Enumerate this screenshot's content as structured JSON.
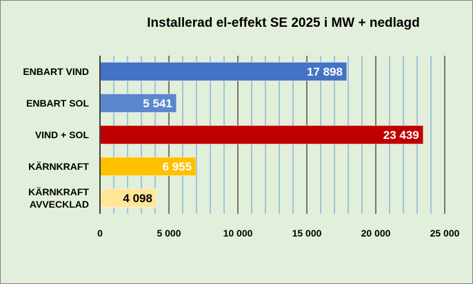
{
  "chart_data": {
    "type": "bar",
    "orientation": "horizontal",
    "title": "Installerad el-effekt SE 2025 i MW + nedlagd",
    "categories": [
      [
        "ENBART VIND"
      ],
      [
        "ENBART SOL"
      ],
      [
        "VIND + SOL"
      ],
      [
        "KÄRNKRAFT"
      ],
      [
        "KÄRNKRAFT",
        "AVVECKLAD"
      ]
    ],
    "values": [
      17898,
      5541,
      23439,
      6955,
      4098
    ],
    "value_labels": [
      "17 898",
      "5 541",
      "23 439",
      "6 955",
      "4 098"
    ],
    "bar_colors": [
      "#4472c4",
      "#5b87cc",
      "#c00000",
      "#ffc000",
      "#ffe699"
    ],
    "label_colors": [
      "#ffffff",
      "#ffffff",
      "#ffffff",
      "#ffffff",
      "#000000"
    ],
    "xlim": [
      0,
      25000
    ],
    "xticks": [
      0,
      5000,
      10000,
      15000,
      20000,
      25000
    ],
    "xtick_labels": [
      "0",
      "5 000",
      "10 000",
      "15 000",
      "20 000",
      "25 000"
    ],
    "major_grid_color": "#000000",
    "minor_grid_color": "#5b9bd5",
    "minor_grid_step": 1000,
    "background": "#e2efda",
    "legend": "none"
  }
}
